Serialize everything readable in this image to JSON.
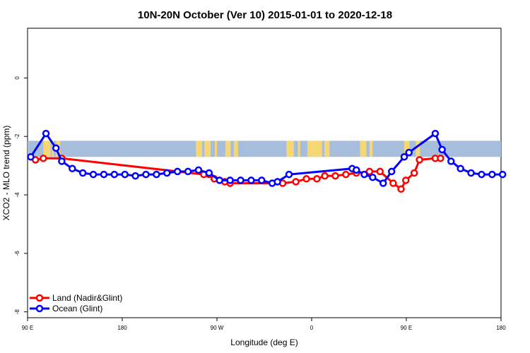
{
  "chart_data": {
    "type": "line",
    "title": "10N-20N October (Ver 10)   2015-01-01 to 2020-12-18",
    "xlabel": "Longitude (deg E)",
    "ylabel": "XCO2 - MLO trend (ppm)",
    "xlim": [
      90,
      540
    ],
    "ylim": [
      -8.2,
      1.7
    ],
    "x_ticks": [
      {
        "value": 90,
        "label": "90 E"
      },
      {
        "value": 180,
        "label": "180"
      },
      {
        "value": 270,
        "label": "90 W"
      },
      {
        "value": 360,
        "label": "0"
      },
      {
        "value": 450,
        "label": "90 E"
      },
      {
        "value": 540,
        "label": "180"
      }
    ],
    "y_ticks": [
      {
        "value": 0,
        "label": "0"
      },
      {
        "value": -2,
        "label": "-2"
      },
      {
        "value": -4,
        "label": "-4"
      },
      {
        "value": -6,
        "label": "-6"
      },
      {
        "value": -8,
        "label": "-8"
      }
    ],
    "map_band": {
      "y_top": -2.15,
      "y_bottom": -2.7,
      "ocean_color": "#a6bddb",
      "land_color": "#f7d774"
    },
    "series": [
      {
        "name": "Land (Nadir&Glint)",
        "color": "#ff0000",
        "x": [
          97.5,
          105,
          122.5,
          257.5,
          262.5,
          267.5,
          277.5,
          282.5,
          332.5,
          345,
          355,
          365,
          372.5,
          382.5,
          392.5,
          402.5,
          415,
          425,
          437.5,
          445,
          449.5,
          457.5,
          462.5,
          477.5,
          482.5
        ],
        "y": [
          -2.8,
          -2.75,
          -2.75,
          -3.3,
          -3.3,
          -3.45,
          -3.55,
          -3.6,
          -3.6,
          -3.55,
          -3.45,
          -3.45,
          -3.35,
          -3.35,
          -3.3,
          -3.25,
          -3.2,
          -3.2,
          -3.6,
          -3.8,
          -3.5,
          -3.25,
          -2.8,
          -2.75,
          -2.75
        ]
      },
      {
        "name": "Ocean (Glint)",
        "color": "#0000ff",
        "x": [
          93,
          107.5,
          117,
          122.5,
          132.5,
          142.5,
          152.5,
          162.5,
          172.5,
          182.5,
          192.5,
          202.5,
          212.5,
          222.5,
          232.5,
          242.5,
          252.5,
          262.5,
          272.5,
          282.5,
          292.5,
          302.5,
          312.5,
          322.5,
          327.5,
          338.5,
          398.5,
          402.5,
          410,
          418,
          428,
          436,
          448,
          452.5,
          477.5,
          484,
          492.5,
          501.5,
          511.5,
          521.5,
          531.5,
          541.5
        ],
        "y": [
          -2.7,
          -1.9,
          -2.4,
          -2.85,
          -3.1,
          -3.25,
          -3.3,
          -3.3,
          -3.3,
          -3.3,
          -3.35,
          -3.3,
          -3.3,
          -3.25,
          -3.2,
          -3.2,
          -3.15,
          -3.25,
          -3.5,
          -3.5,
          -3.5,
          -3.5,
          -3.5,
          -3.6,
          -3.55,
          -3.3,
          -3.1,
          -3.15,
          -3.3,
          -3.4,
          -3.6,
          -3.2,
          -2.7,
          -2.55,
          -1.9,
          -2.45,
          -2.85,
          -3.1,
          -3.25,
          -3.3,
          -3.3,
          -3.3
        ]
      }
    ],
    "legend": {
      "position": "bottom-left"
    }
  }
}
